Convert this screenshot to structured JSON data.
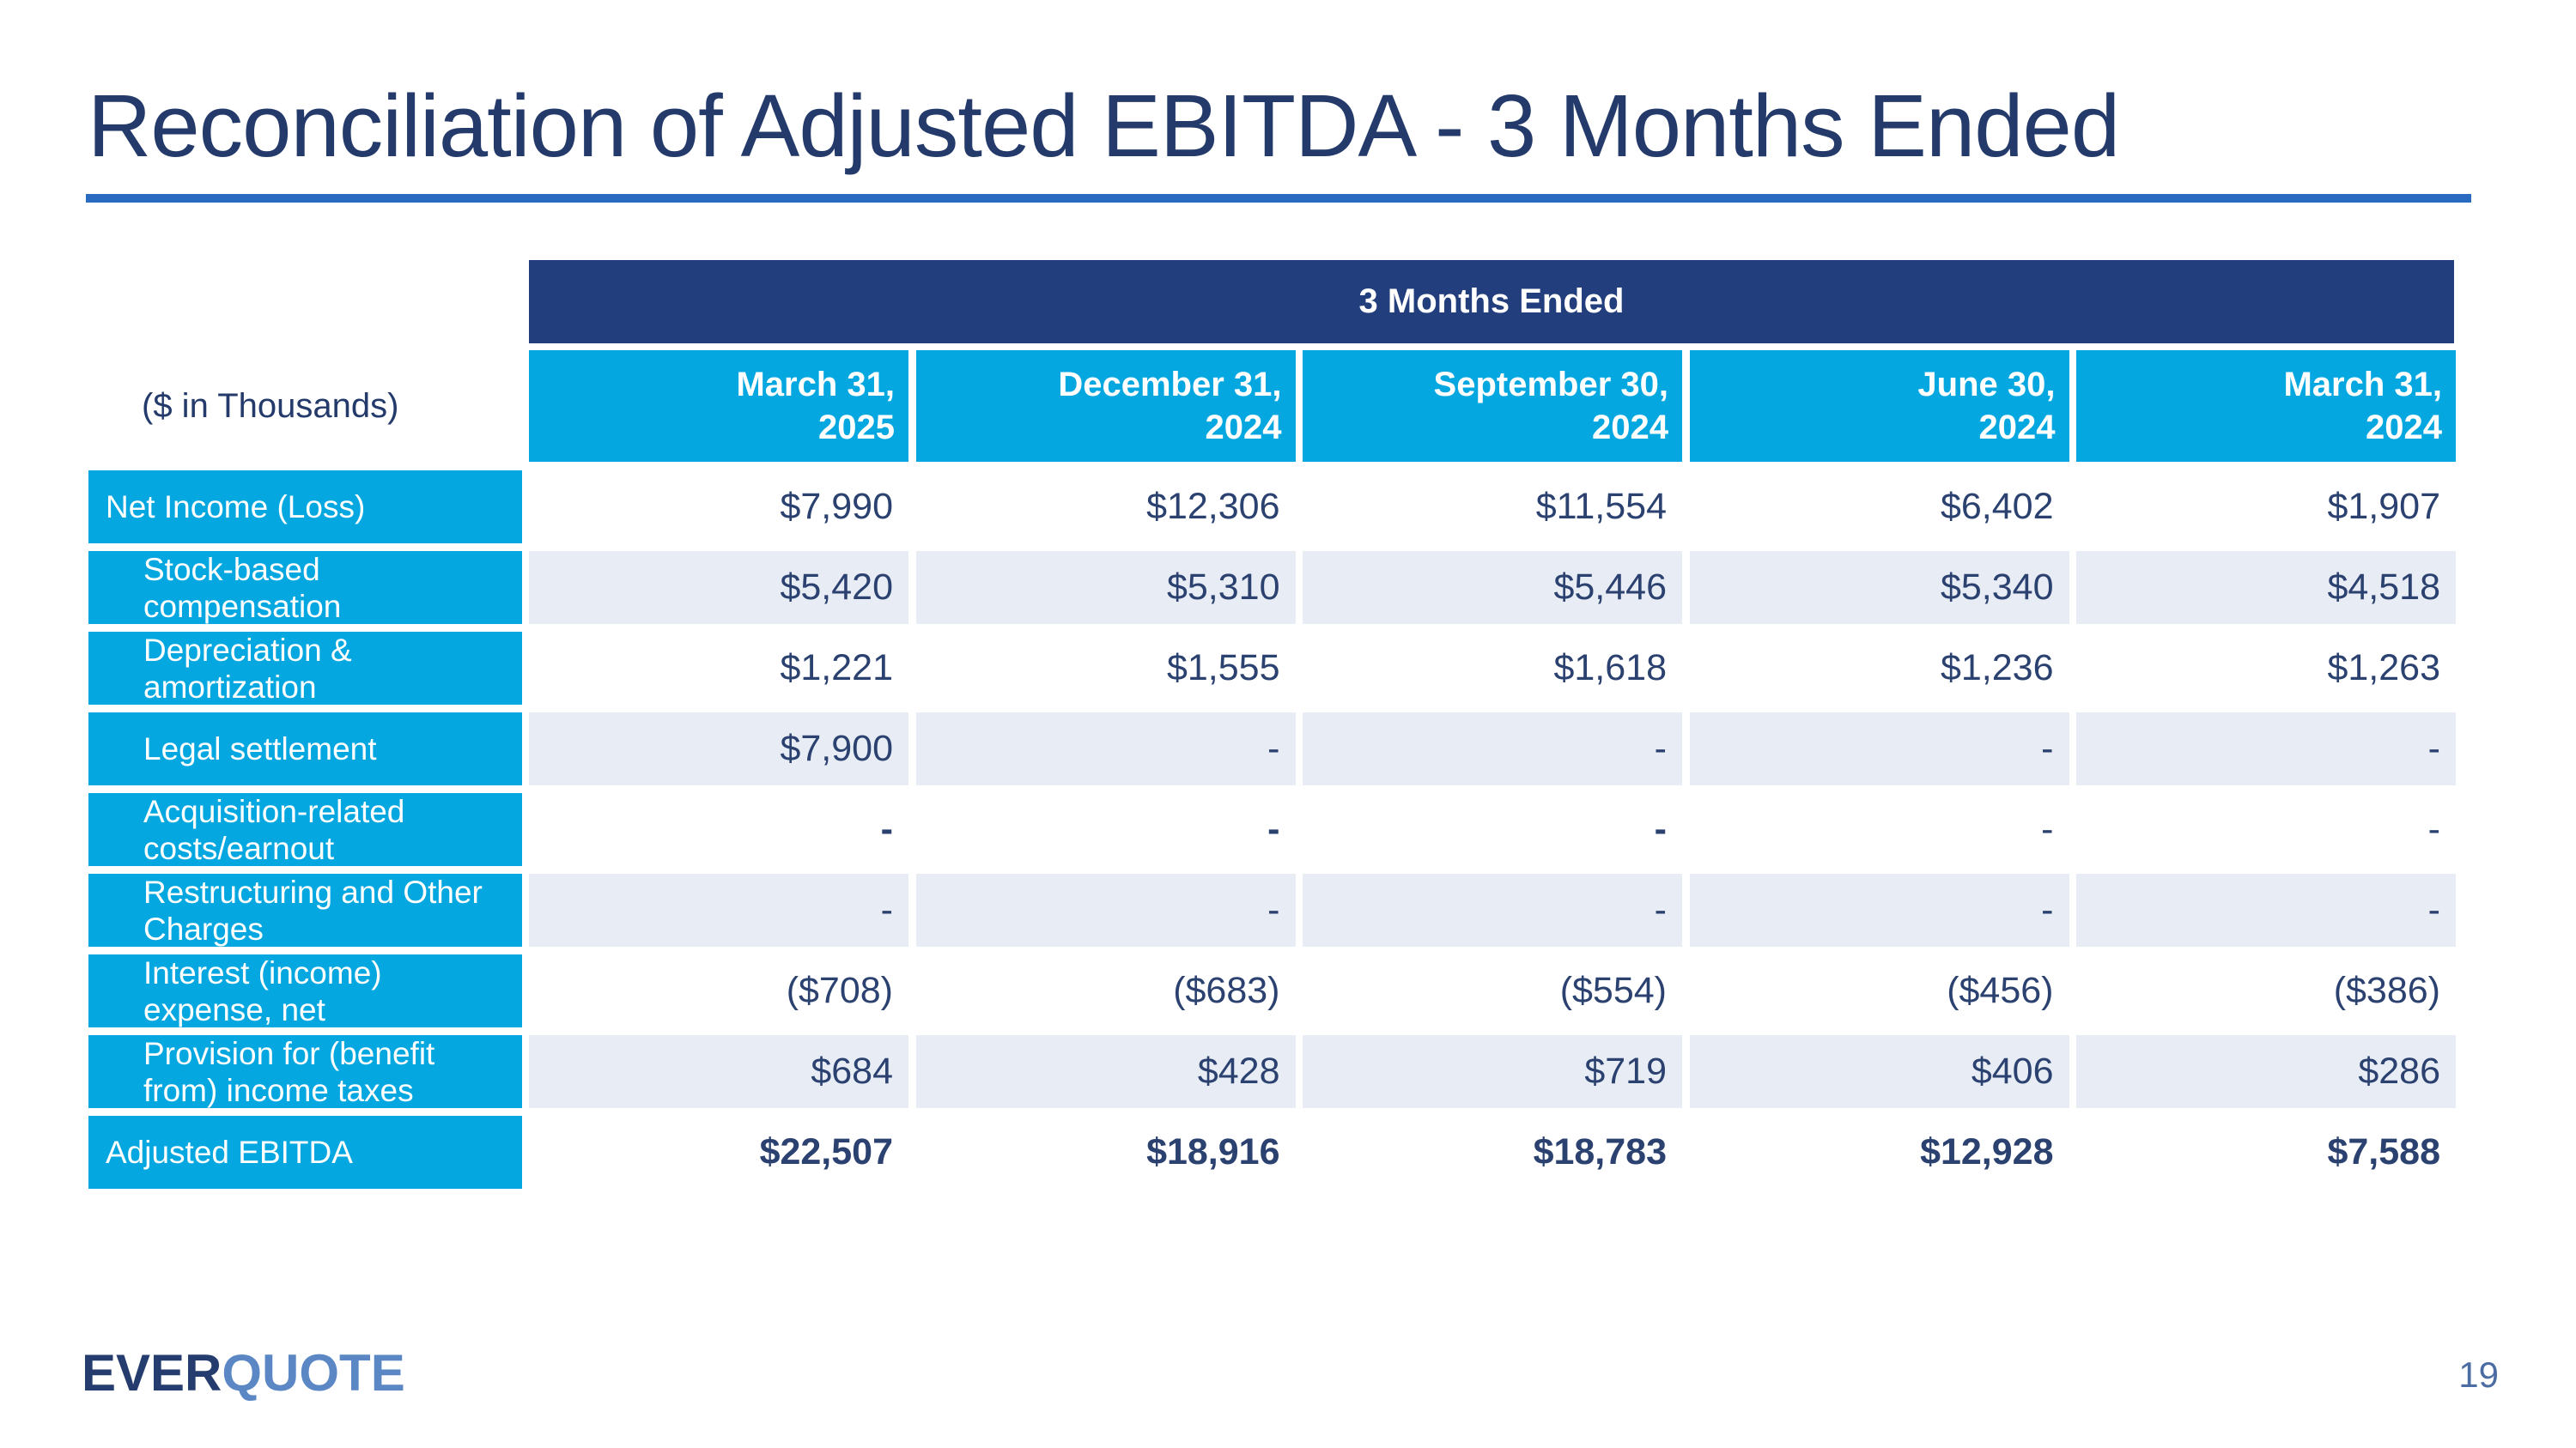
{
  "page": {
    "title": "Reconciliation of Adjusted EBITDA - 3 Months Ended",
    "page_number": "19"
  },
  "logo": {
    "part1": "EVER",
    "part2": "QUOTE"
  },
  "table": {
    "header": "3 Months Ended",
    "units_label": "($ in Thousands)",
    "columns": [
      "March 31,\n2025",
      "December 31,\n2024",
      "September 30,\n2024",
      "June 30,\n2024",
      "March 31,\n2024"
    ],
    "rows": [
      {
        "label": "Net Income (Loss)",
        "indent": false,
        "bold": false,
        "values": [
          "$7,990",
          "$12,306",
          "$11,554",
          "$6,402",
          "$1,907"
        ]
      },
      {
        "label": "Stock-based compensation",
        "indent": true,
        "bold": false,
        "values": [
          "$5,420",
          "$5,310",
          "$5,446",
          "$5,340",
          "$4,518"
        ]
      },
      {
        "label": "Depreciation & amortization",
        "indent": true,
        "bold": false,
        "values": [
          "$1,221",
          "$1,555",
          "$1,618",
          "$1,236",
          "$1,263"
        ]
      },
      {
        "label": "Legal settlement",
        "indent": true,
        "bold": false,
        "values": [
          "$7,900",
          "-",
          "-",
          "-",
          "-"
        ]
      },
      {
        "label": "Acquisition-related costs/earnout",
        "indent": true,
        "bold": false,
        "values": [
          "-",
          "-",
          "-",
          "-",
          "-"
        ],
        "bold_cells": [
          true,
          true,
          true,
          false,
          false
        ]
      },
      {
        "label": "Restructuring and Other Charges",
        "indent": true,
        "bold": false,
        "values": [
          "-",
          "-",
          "-",
          "-",
          "-"
        ]
      },
      {
        "label": "Interest (income) expense, net",
        "indent": true,
        "bold": false,
        "values": [
          "($708)",
          "($683)",
          "($554)",
          "($456)",
          "($386)"
        ]
      },
      {
        "label": "Provision for (benefit from) income taxes",
        "indent": true,
        "bold": false,
        "values": [
          "$684",
          "$428",
          "$719",
          "$406",
          "$286"
        ]
      },
      {
        "label": "Adjusted EBITDA",
        "indent": false,
        "bold": true,
        "values": [
          "$22,507",
          "$18,916",
          "$18,783",
          "$12,928",
          "$7,588"
        ]
      }
    ]
  },
  "colors": {
    "navy_header": "#223e7d",
    "cyan_cell": "#04a7e0",
    "title_text": "#233a6a",
    "value_text": "#2b4170",
    "stripe": "#e8ecf4",
    "rule_blue": "#2b6ac1",
    "logo_ever": "#253c6e",
    "logo_quote": "#5b87c5",
    "page_number": "#4c6da3"
  }
}
